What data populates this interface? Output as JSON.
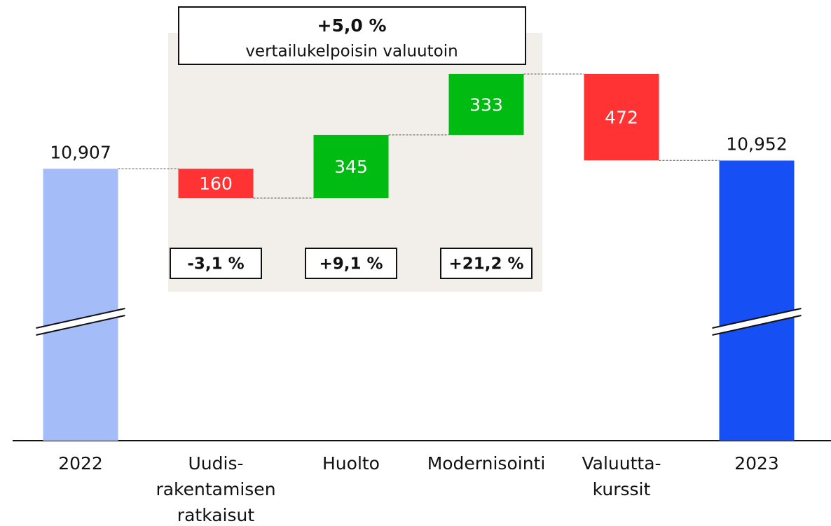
{
  "chart_data": {
    "type": "waterfall",
    "categories": [
      [
        "2022"
      ],
      [
        "Uudis-",
        "rakentamisen",
        "ratkaisut"
      ],
      [
        "Huolto"
      ],
      [
        "Modernisointi"
      ],
      [
        "Valuutta-",
        "kurssit"
      ],
      [
        "2023"
      ]
    ],
    "values": [
      10907,
      -160,
      345,
      333,
      -472,
      10952
    ],
    "value_labels": [
      "10,907",
      "160",
      "345",
      "333",
      "472",
      "10,952"
    ],
    "totals": [
      true,
      false,
      false,
      false,
      false,
      true
    ],
    "colors": [
      "#a4bcf8",
      "#ff3333",
      "#00bb11",
      "#00bb11",
      "#ff3333",
      "#1650f5"
    ],
    "ylim": [
      9420,
      11830
    ],
    "axis_break": true,
    "change_labels": [
      null,
      "-3,1 %",
      "+9,1 %",
      "+21,2 %",
      null,
      null
    ],
    "group_annotation": {
      "title": "+5,0 %",
      "subtitle": "vertailukelpoisin valuutoin"
    }
  }
}
